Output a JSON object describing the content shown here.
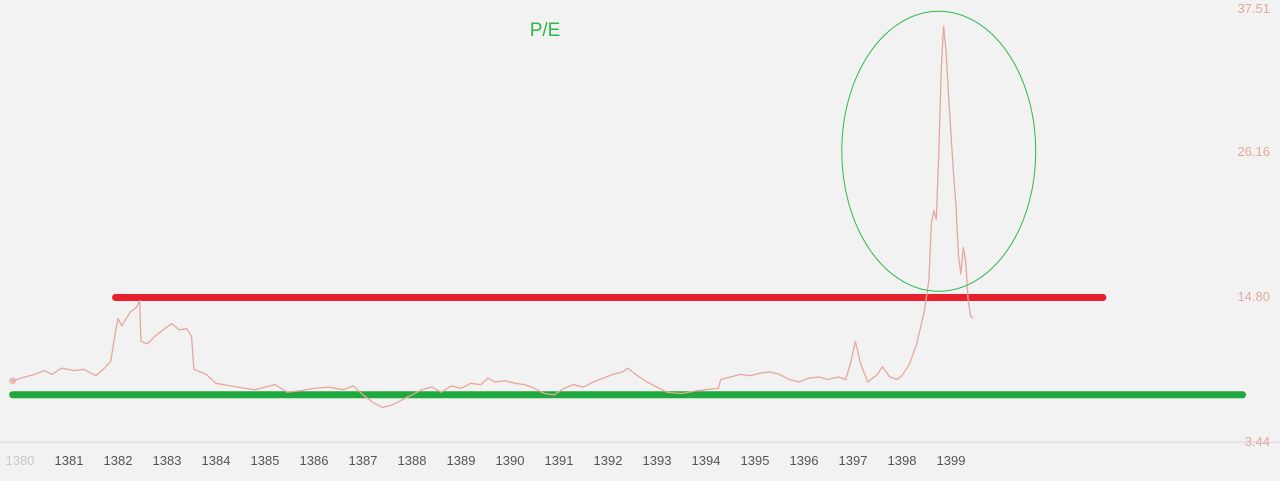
{
  "chart_data": {
    "type": "line",
    "title": "P/E",
    "xlabel": "",
    "ylabel": "",
    "x_ticks": [
      "1380",
      "1381",
      "1382",
      "1383",
      "1384",
      "1385",
      "1386",
      "1387",
      "1388",
      "1389",
      "1390",
      "1391",
      "1392",
      "1393",
      "1394",
      "1395",
      "1396",
      "1397",
      "1398",
      "1399"
    ],
    "y_ticks": [
      "37.51",
      "26.16",
      "14.80",
      "3.44"
    ],
    "ylim": [
      3.44,
      37.51
    ],
    "xlim": [
      1379.83,
      1405.63
    ],
    "grid": false,
    "legend": "none",
    "series": [
      {
        "name": "",
        "color": "#e8a79a",
        "points": [
          [
            1379.85,
            8.1
          ],
          [
            1380.1,
            8.4
          ],
          [
            1380.3,
            8.6
          ],
          [
            1380.5,
            8.9
          ],
          [
            1380.65,
            8.6
          ],
          [
            1380.85,
            9.1
          ],
          [
            1381.1,
            8.9
          ],
          [
            1381.3,
            9.0
          ],
          [
            1381.55,
            8.5
          ],
          [
            1381.7,
            9.0
          ],
          [
            1381.85,
            9.6
          ],
          [
            1381.95,
            12.0
          ],
          [
            1382.0,
            13.0
          ],
          [
            1382.08,
            12.4
          ],
          [
            1382.15,
            12.9
          ],
          [
            1382.25,
            13.5
          ],
          [
            1382.38,
            13.9
          ],
          [
            1382.44,
            14.4
          ],
          [
            1382.47,
            11.2
          ],
          [
            1382.6,
            11.0
          ],
          [
            1382.75,
            11.6
          ],
          [
            1382.95,
            12.2
          ],
          [
            1383.1,
            12.6
          ],
          [
            1383.25,
            12.1
          ],
          [
            1383.4,
            12.2
          ],
          [
            1383.5,
            11.6
          ],
          [
            1383.55,
            9.0
          ],
          [
            1383.8,
            8.6
          ],
          [
            1384.0,
            7.9
          ],
          [
            1384.3,
            7.7
          ],
          [
            1384.6,
            7.5
          ],
          [
            1384.8,
            7.4
          ],
          [
            1385.0,
            7.6
          ],
          [
            1385.2,
            7.8
          ],
          [
            1385.45,
            7.2
          ],
          [
            1385.7,
            7.3
          ],
          [
            1386.0,
            7.5
          ],
          [
            1386.3,
            7.6
          ],
          [
            1386.6,
            7.4
          ],
          [
            1386.8,
            7.7
          ],
          [
            1387.0,
            7.0
          ],
          [
            1387.2,
            6.4
          ],
          [
            1387.4,
            6.0
          ],
          [
            1387.6,
            6.2
          ],
          [
            1387.8,
            6.6
          ],
          [
            1388.0,
            7.0
          ],
          [
            1388.2,
            7.4
          ],
          [
            1388.4,
            7.6
          ],
          [
            1388.6,
            7.2
          ],
          [
            1388.8,
            7.7
          ],
          [
            1389.0,
            7.5
          ],
          [
            1389.2,
            7.9
          ],
          [
            1389.4,
            7.8
          ],
          [
            1389.55,
            8.3
          ],
          [
            1389.7,
            8.0
          ],
          [
            1389.9,
            8.1
          ],
          [
            1390.1,
            7.9
          ],
          [
            1390.3,
            7.8
          ],
          [
            1390.5,
            7.5
          ],
          [
            1390.7,
            7.1
          ],
          [
            1390.9,
            7.0
          ],
          [
            1391.1,
            7.5
          ],
          [
            1391.3,
            7.8
          ],
          [
            1391.5,
            7.6
          ],
          [
            1391.7,
            8.0
          ],
          [
            1391.9,
            8.3
          ],
          [
            1392.1,
            8.6
          ],
          [
            1392.3,
            8.8
          ],
          [
            1392.4,
            9.1
          ],
          [
            1392.6,
            8.5
          ],
          [
            1392.8,
            8.0
          ],
          [
            1393.0,
            7.6
          ],
          [
            1393.2,
            7.2
          ],
          [
            1393.5,
            7.1
          ],
          [
            1393.8,
            7.3
          ],
          [
            1394.0,
            7.4
          ],
          [
            1394.25,
            7.5
          ],
          [
            1394.3,
            8.2
          ],
          [
            1394.5,
            8.4
          ],
          [
            1394.7,
            8.6
          ],
          [
            1394.9,
            8.5
          ],
          [
            1395.1,
            8.7
          ],
          [
            1395.3,
            8.8
          ],
          [
            1395.5,
            8.6
          ],
          [
            1395.7,
            8.2
          ],
          [
            1395.9,
            8.0
          ],
          [
            1396.1,
            8.3
          ],
          [
            1396.3,
            8.4
          ],
          [
            1396.5,
            8.2
          ],
          [
            1396.7,
            8.4
          ],
          [
            1396.85,
            8.2
          ],
          [
            1396.95,
            9.5
          ],
          [
            1397.05,
            11.2
          ],
          [
            1397.15,
            9.5
          ],
          [
            1397.3,
            8.0
          ],
          [
            1397.5,
            8.6
          ],
          [
            1397.6,
            9.2
          ],
          [
            1397.75,
            8.4
          ],
          [
            1397.9,
            8.2
          ],
          [
            1398.0,
            8.5
          ],
          [
            1398.15,
            9.4
          ],
          [
            1398.3,
            11.0
          ],
          [
            1398.45,
            13.5
          ],
          [
            1398.55,
            16.0
          ],
          [
            1398.6,
            20.5
          ],
          [
            1398.65,
            21.5
          ],
          [
            1398.7,
            20.8
          ],
          [
            1398.75,
            26.0
          ],
          [
            1398.8,
            32.5
          ],
          [
            1398.85,
            36.0
          ],
          [
            1398.9,
            34.0
          ],
          [
            1398.95,
            30.5
          ],
          [
            1399.0,
            27.5
          ],
          [
            1399.05,
            24.5
          ],
          [
            1399.1,
            22.0
          ],
          [
            1399.15,
            18.0
          ],
          [
            1399.2,
            16.5
          ],
          [
            1399.25,
            18.6
          ],
          [
            1399.3,
            17.5
          ],
          [
            1399.35,
            14.5
          ],
          [
            1399.4,
            13.2
          ],
          [
            1399.45,
            13.0
          ]
        ]
      }
    ],
    "reference_lines": [
      {
        "y": 14.65,
        "x_from": 1381.95,
        "x_to": 1402.1,
        "color": "#e8202d"
      },
      {
        "y": 7.0,
        "x_from": 1379.85,
        "x_to": 1404.95,
        "color": "#1fa83e"
      }
    ],
    "annotation_ellipse": {
      "cx": 1398.75,
      "cy": 26.16,
      "color": "#2fb84a"
    },
    "colors": {
      "title": "#2fb84a",
      "y_tick_text": "#e8a79a",
      "x_tick_text": "#555555",
      "first_x_tick_text": "#c8c8c8",
      "axis_line": "#d8d8d8"
    }
  }
}
